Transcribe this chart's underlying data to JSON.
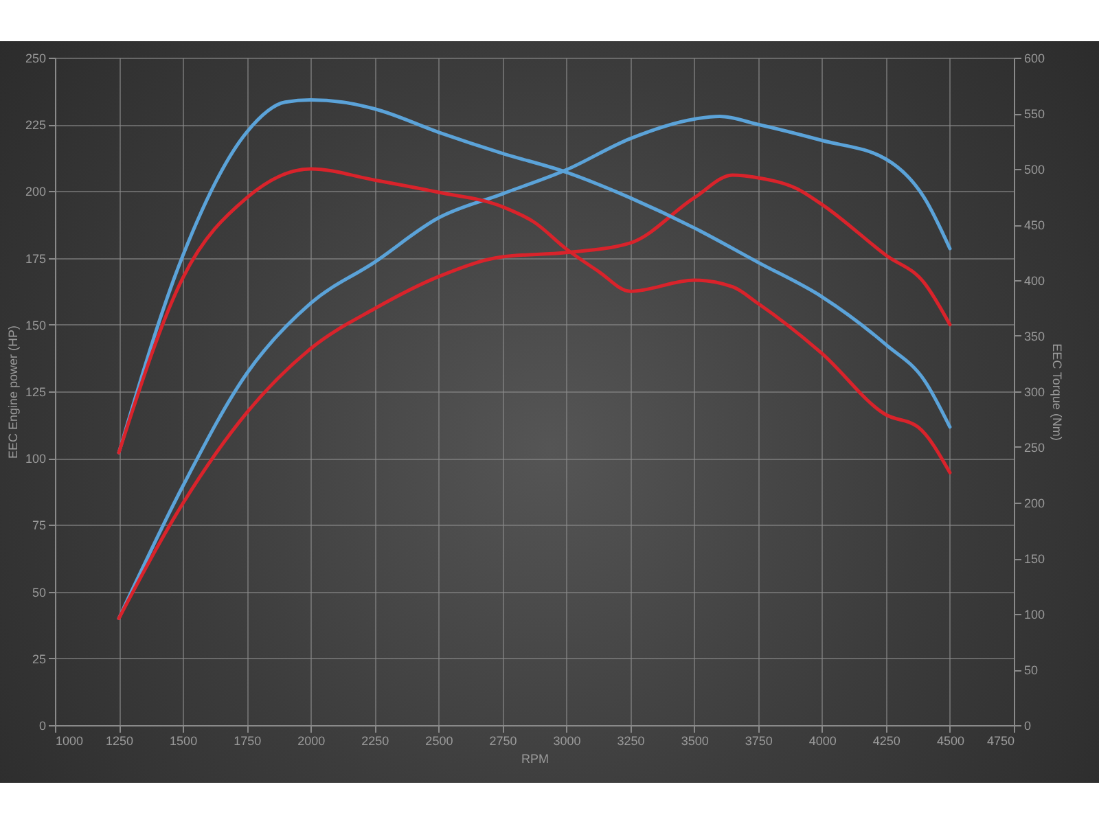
{
  "chart_data": {
    "type": "line",
    "xlabel": "RPM",
    "ylabel": "EEC Engine power (HP)",
    "y2label": "EEC Torque (Nm)",
    "series": [
      {
        "color": "#5ba3d9",
        "x": [
          1250,
          1500,
          1750,
          2000,
          2250,
          2500,
          2750,
          3000,
          3250,
          3500,
          3600,
          3750,
          4000,
          4250,
          4400,
          4500
        ],
        "values": [
          40,
          89.5,
          131.7,
          158,
          173.4,
          190,
          199,
          208,
          219.7,
          227,
          228,
          225,
          219,
          212,
          197.5,
          178.5
        ]
      },
      {
        "color": "#d9232b",
        "x": [
          1250,
          1500,
          1750,
          2000,
          2250,
          2500,
          2750,
          3000,
          3250,
          3500,
          3650,
          3750,
          3900,
          4000,
          4250,
          4400,
          4500
        ],
        "values": [
          40,
          83,
          117,
          141,
          156,
          168,
          175.4,
          177,
          180.6,
          197.5,
          206,
          205,
          201,
          195,
          176,
          165.6,
          150
        ]
      },
      {
        "color": "#5ba3d9",
        "axis": "y2",
        "x": [
          1250,
          1500,
          1750,
          1900,
          2000,
          2125,
          2250,
          2500,
          2750,
          3000,
          3250,
          3500,
          3750,
          4000,
          4250,
          4400,
          4500
        ],
        "values": [
          245,
          422,
          533,
          560,
          562,
          560,
          554,
          533,
          514,
          497,
          474,
          447,
          416,
          385,
          342,
          310,
          268
        ]
      },
      {
        "color": "#d9232b",
        "axis": "y2",
        "x": [
          1250,
          1500,
          1750,
          2000,
          2250,
          2500,
          2750,
          2875,
          3000,
          3125,
          3250,
          3500,
          3650,
          3750,
          4000,
          4250,
          4375,
          4500
        ],
        "values": [
          245,
          402,
          474,
          500,
          490,
          479,
          466,
          452,
          428,
          408,
          390,
          400,
          394,
          379,
          334,
          279,
          268,
          227
        ]
      }
    ],
    "xlim": [
      1000,
      4750
    ],
    "xticks": [
      1000,
      1250,
      1500,
      1750,
      2000,
      2250,
      2500,
      2750,
      3000,
      3250,
      3500,
      3750,
      4000,
      4250,
      4500,
      4750
    ],
    "ylim": [
      0,
      250
    ],
    "yticks": [
      0,
      25,
      50,
      75,
      100,
      125,
      150,
      175,
      200,
      225,
      250
    ],
    "y2lim": [
      0,
      600
    ],
    "y2ticks": [
      0,
      50,
      100,
      150,
      200,
      250,
      300,
      350,
      400,
      450,
      500,
      550,
      600
    ],
    "grid": true
  }
}
